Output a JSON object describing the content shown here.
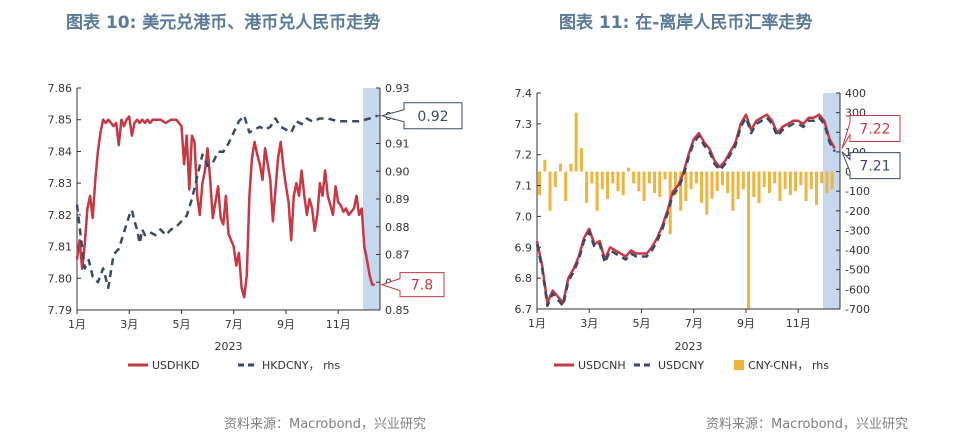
{
  "chart_data": [
    {
      "type": "line",
      "title": "图表 10: 美元兑港币、港币兑人民币走势",
      "xlabel": "2023",
      "x_ticks": [
        "1月",
        "3月",
        "5月",
        "7月",
        "9月",
        "11月"
      ],
      "ylim_left": [
        7.79,
        7.86
      ],
      "y_ticks_left": [
        "7.86",
        "7.85",
        "7.84",
        "7.83",
        "7.82",
        "7.81",
        "7.80",
        "7.79"
      ],
      "ylim_right": [
        0.85,
        0.93
      ],
      "y_ticks_right": [
        "0.93",
        "0.92",
        "0.91",
        "0.90",
        "0.89",
        "0.88",
        "0.87",
        "0.86",
        "0.85"
      ],
      "highlight_x": [
        10.95,
        11.6
      ],
      "legend_position": "bottom",
      "series": [
        {
          "name": "USDHKD",
          "axis": "left",
          "color": "#c73845",
          "dash": "solid",
          "x": [
            0.0,
            0.1,
            0.2,
            0.3,
            0.4,
            0.5,
            0.6,
            0.7,
            0.8,
            0.9,
            1.0,
            1.1,
            1.2,
            1.3,
            1.4,
            1.5,
            1.6,
            1.7,
            1.8,
            1.9,
            2.0,
            2.1,
            2.2,
            2.3,
            2.4,
            2.5,
            2.6,
            2.7,
            2.8,
            2.9,
            3.0,
            3.2,
            3.4,
            3.6,
            3.8,
            4.0,
            4.1,
            4.2,
            4.3,
            4.4,
            4.5,
            4.6,
            4.7,
            4.8,
            4.9,
            5.0,
            5.1,
            5.2,
            5.3,
            5.4,
            5.5,
            5.6,
            5.7,
            5.8,
            5.9,
            6.0,
            6.1,
            6.2,
            6.3,
            6.4,
            6.5,
            6.6,
            6.7,
            6.8,
            6.9,
            7.0,
            7.1,
            7.2,
            7.3,
            7.4,
            7.5,
            7.6,
            7.7,
            7.8,
            7.9,
            8.0,
            8.1,
            8.2,
            8.3,
            8.4,
            8.5,
            8.6,
            8.7,
            8.8,
            8.9,
            9.0,
            9.1,
            9.2,
            9.3,
            9.4,
            9.5,
            9.6,
            9.7,
            9.8,
            9.9,
            10.0,
            10.1,
            10.2,
            10.3,
            10.4,
            10.5,
            10.6,
            10.7,
            10.8,
            10.9,
            11.0,
            11.1,
            11.2,
            11.3,
            11.4
          ],
          "y": [
            7.806,
            7.812,
            7.803,
            7.811,
            7.822,
            7.826,
            7.819,
            7.831,
            7.84,
            7.846,
            7.85,
            7.849,
            7.85,
            7.849,
            7.848,
            7.849,
            7.842,
            7.85,
            7.848,
            7.85,
            7.851,
            7.845,
            7.849,
            7.85,
            7.849,
            7.85,
            7.849,
            7.85,
            7.849,
            7.85,
            7.85,
            7.85,
            7.849,
            7.85,
            7.85,
            7.848,
            7.836,
            7.845,
            7.828,
            7.845,
            7.843,
            7.826,
            7.82,
            7.83,
            7.834,
            7.841,
            7.831,
            7.819,
            7.824,
            7.829,
            7.819,
            7.817,
            7.826,
            7.814,
            7.812,
            7.81,
            7.804,
            7.808,
            7.797,
            7.794,
            7.801,
            7.826,
            7.838,
            7.843,
            7.839,
            7.836,
            7.831,
            7.841,
            7.836,
            7.831,
            7.818,
            7.828,
            7.838,
            7.843,
            7.835,
            7.829,
            7.824,
            7.812,
            7.826,
            7.83,
            7.826,
            7.834,
            7.826,
            7.82,
            7.825,
            7.822,
            7.815,
            7.82,
            7.83,
            7.826,
            7.834,
            7.826,
            7.823,
            7.82,
            7.829,
            7.824,
            7.823,
            7.821,
            7.822,
            7.82,
            7.821,
            7.822,
            7.826,
            7.82,
            7.822,
            7.81,
            7.806,
            7.801,
            7.798,
            7.798
          ]
        },
        {
          "name": "HKDCNY",
          "axis": "right",
          "color": "#3a4a66",
          "dash": "dash",
          "x": [
            0.0,
            0.15,
            0.3,
            0.45,
            0.6,
            0.8,
            1.0,
            1.2,
            1.4,
            1.6,
            1.8,
            2.0,
            2.1,
            2.2,
            2.3,
            2.4,
            2.5,
            2.6,
            2.8,
            3.0,
            3.2,
            3.4,
            3.6,
            3.8,
            4.0,
            4.2,
            4.4,
            4.6,
            4.8,
            5.0,
            5.2,
            5.4,
            5.6,
            5.8,
            6.0,
            6.2,
            6.4,
            6.6,
            6.8,
            7.0,
            7.2,
            7.4,
            7.6,
            7.8,
            8.0,
            8.2,
            8.4,
            8.6,
            8.8,
            9.0,
            9.3,
            9.6,
            10.0,
            10.4,
            10.8,
            11.2,
            11.5
          ],
          "y": [
            0.888,
            0.876,
            0.865,
            0.868,
            0.862,
            0.86,
            0.865,
            0.858,
            0.87,
            0.872,
            0.878,
            0.884,
            0.886,
            0.882,
            0.879,
            0.874,
            0.879,
            0.877,
            0.878,
            0.877,
            0.879,
            0.877,
            0.879,
            0.88,
            0.882,
            0.884,
            0.89,
            0.898,
            0.906,
            0.902,
            0.903,
            0.907,
            0.907,
            0.91,
            0.914,
            0.918,
            0.92,
            0.914,
            0.915,
            0.916,
            0.915,
            0.916,
            0.919,
            0.916,
            0.915,
            0.914,
            0.918,
            0.917,
            0.919,
            0.918,
            0.919,
            0.919,
            0.918,
            0.918,
            0.918,
            0.919,
            0.92
          ]
        }
      ],
      "annotations": [
        {
          "text": "0.92",
          "axis": "right",
          "value": 0.92,
          "color": "#3a4a66"
        },
        {
          "text": "7.8",
          "axis": "left",
          "value": 7.798,
          "color": "#c73845"
        }
      ]
    },
    {
      "type": "line",
      "title": "图表 11: 在-离岸人民币汇率走势",
      "xlabel": "2023",
      "x_ticks": [
        "1月",
        "3月",
        "5月",
        "7月",
        "9月",
        "11月"
      ],
      "ylim_left": [
        6.7,
        7.4
      ],
      "y_ticks_left": [
        "7.4",
        "7.3",
        "7.2",
        "7.1",
        "7.0",
        "6.9",
        "6.8",
        "6.7"
      ],
      "ylim_right": [
        -700,
        400
      ],
      "y_ticks_right": [
        "400",
        "300",
        "200",
        "100",
        "0",
        "-100",
        "-200",
        "-300",
        "-400",
        "-500",
        "-600",
        "-700"
      ],
      "highlight_x": [
        10.95,
        11.6
      ],
      "legend_position": "bottom",
      "series": [
        {
          "name": "USDCNH",
          "axis": "left",
          "color": "#c73845",
          "dash": "solid",
          "x": [
            0.0,
            0.2,
            0.4,
            0.6,
            0.8,
            1.0,
            1.2,
            1.4,
            1.6,
            1.8,
            2.0,
            2.2,
            2.4,
            2.6,
            2.8,
            3.0,
            3.2,
            3.4,
            3.6,
            3.8,
            4.0,
            4.2,
            4.4,
            4.6,
            4.8,
            5.0,
            5.2,
            5.4,
            5.6,
            5.8,
            6.0,
            6.2,
            6.4,
            6.6,
            6.8,
            7.0,
            7.2,
            7.4,
            7.6,
            7.8,
            8.0,
            8.2,
            8.4,
            8.6,
            8.8,
            9.0,
            9.2,
            9.4,
            9.6,
            9.8,
            10.0,
            10.2,
            10.4,
            10.6,
            10.8,
            11.0,
            11.2,
            11.4
          ],
          "y": [
            6.92,
            6.84,
            6.72,
            6.76,
            6.74,
            6.72,
            6.8,
            6.83,
            6.87,
            6.93,
            6.96,
            6.91,
            6.92,
            6.86,
            6.9,
            6.89,
            6.88,
            6.87,
            6.89,
            6.88,
            6.88,
            6.88,
            6.9,
            6.93,
            6.97,
            7.02,
            7.08,
            7.1,
            7.14,
            7.2,
            7.25,
            7.27,
            7.24,
            7.22,
            7.18,
            7.16,
            7.18,
            7.21,
            7.24,
            7.3,
            7.33,
            7.28,
            7.31,
            7.32,
            7.33,
            7.31,
            7.27,
            7.29,
            7.3,
            7.31,
            7.31,
            7.3,
            7.32,
            7.32,
            7.33,
            7.31,
            7.25,
            7.22
          ]
        },
        {
          "name": "USDCNY",
          "axis": "left",
          "color": "#3a4a66",
          "dash": "dash",
          "x": [
            0.0,
            0.2,
            0.4,
            0.6,
            0.8,
            1.0,
            1.2,
            1.4,
            1.6,
            1.8,
            2.0,
            2.2,
            2.4,
            2.6,
            2.8,
            3.0,
            3.2,
            3.4,
            3.6,
            3.8,
            4.0,
            4.2,
            4.4,
            4.6,
            4.8,
            5.0,
            5.2,
            5.4,
            5.6,
            5.8,
            6.0,
            6.2,
            6.4,
            6.6,
            6.8,
            7.0,
            7.2,
            7.4,
            7.6,
            7.8,
            8.0,
            8.2,
            8.4,
            8.6,
            8.8,
            9.0,
            9.2,
            9.4,
            9.6,
            9.8,
            10.0,
            10.2,
            10.4,
            10.6,
            10.8,
            11.0,
            11.2,
            11.4
          ],
          "y": [
            6.91,
            6.83,
            6.71,
            6.75,
            6.73,
            6.71,
            6.79,
            6.82,
            6.86,
            6.92,
            6.95,
            6.9,
            6.91,
            6.85,
            6.89,
            6.88,
            6.87,
            6.86,
            6.88,
            6.87,
            6.87,
            6.87,
            6.89,
            6.92,
            6.96,
            7.01,
            7.07,
            7.09,
            7.13,
            7.19,
            7.24,
            7.26,
            7.23,
            7.21,
            7.17,
            7.15,
            7.17,
            7.2,
            7.23,
            7.29,
            7.32,
            7.27,
            7.3,
            7.31,
            7.32,
            7.3,
            7.26,
            7.28,
            7.29,
            7.3,
            7.3,
            7.29,
            7.31,
            7.31,
            7.32,
            7.3,
            7.24,
            7.21
          ]
        },
        {
          "name": "CNY-CNH, rhs",
          "axis": "right",
          "type": "bar",
          "color": "#f0b43c",
          "x": [
            0.1,
            0.3,
            0.5,
            0.7,
            0.9,
            1.1,
            1.3,
            1.5,
            1.7,
            1.9,
            2.1,
            2.3,
            2.5,
            2.7,
            2.9,
            3.1,
            3.3,
            3.5,
            3.7,
            3.9,
            4.1,
            4.3,
            4.5,
            4.7,
            4.9,
            5.1,
            5.3,
            5.5,
            5.7,
            5.9,
            6.1,
            6.3,
            6.5,
            6.7,
            6.9,
            7.1,
            7.3,
            7.5,
            7.7,
            7.9,
            8.1,
            8.3,
            8.5,
            8.7,
            8.9,
            9.1,
            9.3,
            9.5,
            9.7,
            9.9,
            10.1,
            10.3,
            10.5,
            10.7,
            10.9,
            11.1,
            11.3
          ],
          "y": [
            -120,
            60,
            -200,
            -80,
            40,
            -150,
            40,
            300,
            120,
            -160,
            -60,
            -200,
            -90,
            -140,
            -60,
            -100,
            -120,
            20,
            -60,
            -100,
            -150,
            -60,
            -110,
            -130,
            -40,
            -320,
            -120,
            -200,
            -150,
            -90,
            -60,
            -160,
            -220,
            -140,
            -100,
            -70,
            -110,
            -200,
            -140,
            -90,
            -700,
            -130,
            -160,
            -80,
            -110,
            -60,
            -150,
            -90,
            -120,
            -100,
            -70,
            -150,
            -90,
            -170,
            -60,
            -110,
            -90
          ]
        }
      ],
      "annotations": [
        {
          "text": "7.22",
          "axis": "left",
          "value": 7.22,
          "color": "#c73845"
        },
        {
          "text": "7.21",
          "axis": "left",
          "value": 7.21,
          "color": "#3a4a66"
        }
      ]
    }
  ],
  "legends": [
    {
      "items": [
        {
          "label": "USDHKD",
          "color": "#c73845",
          "kind": "solid"
        },
        {
          "label": "HKDCNY， rhs",
          "color": "#3a4a66",
          "kind": "dash"
        }
      ]
    },
    {
      "items": [
        {
          "label": "USDCNH",
          "color": "#c73845",
          "kind": "solid"
        },
        {
          "label": "USDCNY",
          "color": "#3a4a66",
          "kind": "dash"
        },
        {
          "label": "CNY-CNH， rhs",
          "color": "#f0b43c",
          "kind": "bar"
        }
      ]
    }
  ],
  "sources": [
    "资料来源：Macrobond，兴业研究",
    "资料来源：Macrobond，兴业研究"
  ]
}
